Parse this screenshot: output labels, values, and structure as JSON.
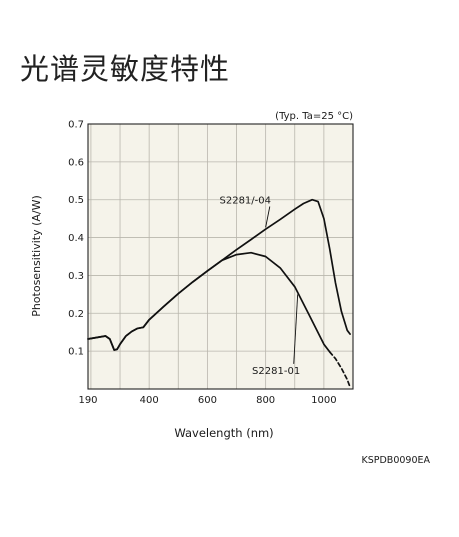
{
  "title": "光谱灵敏度特性",
  "chart_code": "KSPDB0090EA",
  "chart_data": {
    "type": "line",
    "annotation": "(Typ. Ta=25 °C)",
    "xlabel": "Wavelength (nm)",
    "ylabel": "Photosensitivity (A/W)",
    "xlim": [
      190,
      1100
    ],
    "ylim": [
      0,
      0.7
    ],
    "x_ticks": [
      190,
      400,
      600,
      800,
      1000
    ],
    "x_tick_labels": [
      "190",
      "400",
      "600",
      "800",
      "1000"
    ],
    "y_ticks": [
      0.1,
      0.2,
      0.3,
      0.4,
      0.5,
      0.6,
      0.7
    ],
    "y_tick_labels": [
      "0.1",
      "0.2",
      "0.3",
      "0.4",
      "0.5",
      "0.6",
      "0.7"
    ],
    "grid": true,
    "background": "#f5f3ea",
    "series": [
      {
        "name": "S2281/-04",
        "x": [
          190,
          220,
          250,
          265,
          280,
          290,
          300,
          320,
          340,
          360,
          380,
          400,
          450,
          500,
          550,
          600,
          650,
          700,
          750,
          800,
          850,
          900,
          930,
          960,
          980,
          1000,
          1020,
          1040,
          1060,
          1080,
          1090
        ],
        "y": [
          0.132,
          0.136,
          0.14,
          0.132,
          0.103,
          0.105,
          0.118,
          0.14,
          0.152,
          0.16,
          0.163,
          0.183,
          0.218,
          0.252,
          0.283,
          0.312,
          0.34,
          0.368,
          0.395,
          0.422,
          0.448,
          0.475,
          0.49,
          0.5,
          0.495,
          0.45,
          0.37,
          0.28,
          0.205,
          0.155,
          0.145
        ]
      },
      {
        "name": "S2281-01",
        "x": [
          190,
          220,
          250,
          265,
          280,
          290,
          300,
          320,
          340,
          360,
          380,
          400,
          450,
          500,
          550,
          600,
          650,
          700,
          750,
          800,
          850,
          900,
          950,
          1000,
          1020
        ],
        "y": [
          0.132,
          0.136,
          0.14,
          0.132,
          0.103,
          0.105,
          0.118,
          0.14,
          0.152,
          0.16,
          0.163,
          0.183,
          0.218,
          0.252,
          0.283,
          0.312,
          0.34,
          0.355,
          0.36,
          0.35,
          0.32,
          0.27,
          0.195,
          0.118,
          0.098
        ]
      },
      {
        "name": "",
        "dashed": true,
        "x": [
          1020,
          1040,
          1060,
          1080,
          1090
        ],
        "y": [
          0.098,
          0.08,
          0.055,
          0.025,
          0.005
        ]
      }
    ],
    "labels": [
      {
        "text": "S2281/-04",
        "x": 730,
        "y": 0.49,
        "arrow_to": [
          800,
          0.427
        ]
      },
      {
        "text": "S2281-01",
        "x": 836,
        "y": 0.04,
        "arrow_to": [
          910,
          0.25
        ]
      }
    ]
  }
}
